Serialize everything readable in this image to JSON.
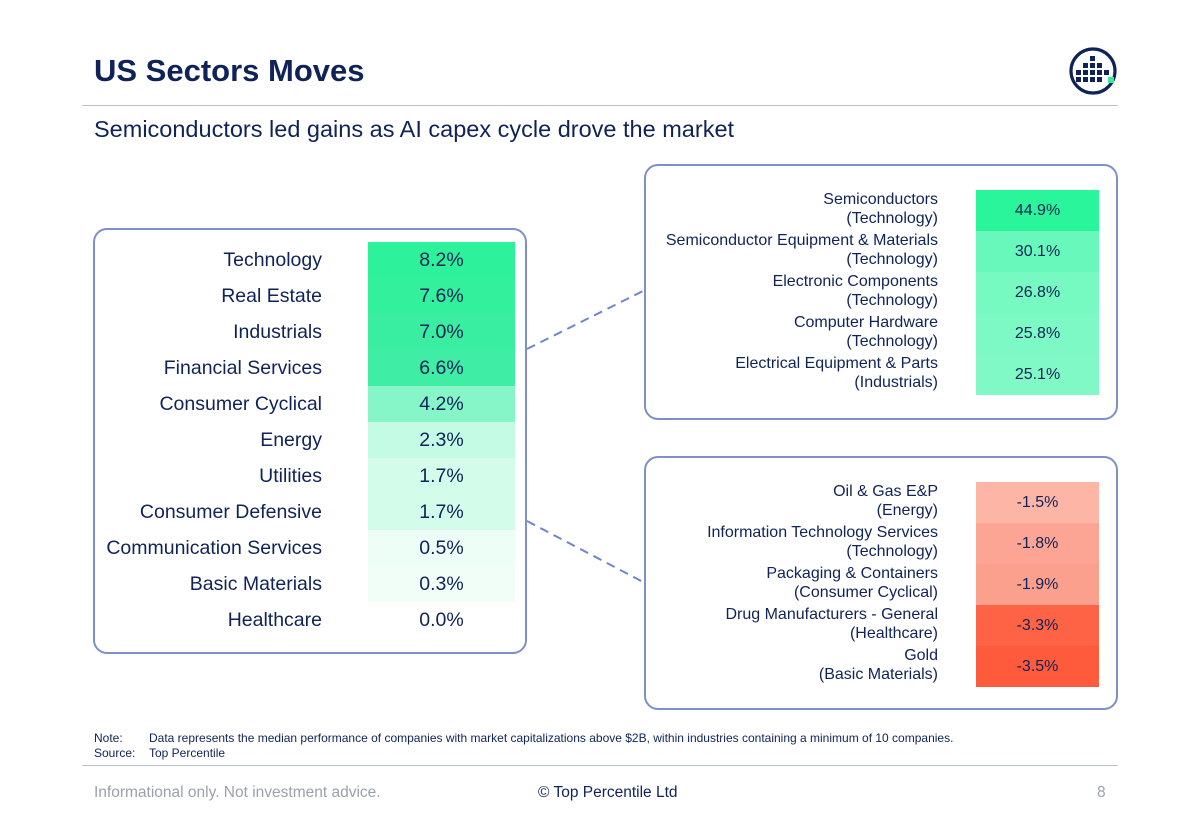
{
  "header": {
    "title": "US Sectors Moves",
    "subtitle": "Semiconductors led gains as AI capex cycle drove the market"
  },
  "chart_data": [
    {
      "type": "table",
      "title": "",
      "categories": [
        "Technology",
        "Real Estate",
        "Industrials",
        "Financial Services",
        "Consumer Cyclical",
        "Energy",
        "Utilities",
        "Consumer Defensive",
        "Communication Services",
        "Basic Materials",
        "Healthcare"
      ],
      "values": [
        8.2,
        7.6,
        7.0,
        6.6,
        4.2,
        2.3,
        1.7,
        1.7,
        0.5,
        0.3,
        0.0
      ],
      "value_labels": [
        "8.2%",
        "7.6%",
        "7.0%",
        "6.6%",
        "4.2%",
        "2.3%",
        "1.7%",
        "1.7%",
        "0.5%",
        "0.3%",
        "0.0%"
      ],
      "colors": [
        "#2ef29b",
        "#33f09d",
        "#3aeea1",
        "#40eda4",
        "#86f6c9",
        "#c4fbe4",
        "#d4fceb",
        "#d4fceb",
        "#ecfef5",
        "#f0fef7",
        "#ffffff"
      ]
    },
    {
      "type": "table",
      "title": "",
      "rows": [
        {
          "industry": "Semiconductors",
          "sector": "(Technology)",
          "value": 44.9,
          "label": "44.9%",
          "color": "#2af59b"
        },
        {
          "industry": "Semiconductor Equipment & Materials",
          "sector": "(Technology)",
          "value": 30.1,
          "label": "30.1%",
          "color": "#69f8bb"
        },
        {
          "industry": "Electronic Components",
          "sector": "(Technology)",
          "value": 26.8,
          "label": "26.8%",
          "color": "#77f9c2"
        },
        {
          "industry": "Computer Hardware",
          "sector": "(Technology)",
          "value": 25.8,
          "label": "25.8%",
          "color": "#7cf9c4"
        },
        {
          "industry": "Electrical Equipment & Parts",
          "sector": "(Industrials)",
          "value": 25.1,
          "label": "25.1%",
          "color": "#80f9c6"
        }
      ]
    },
    {
      "type": "table",
      "title": "",
      "rows": [
        {
          "industry": "Oil & Gas E&P",
          "sector": "(Energy)",
          "value": -1.5,
          "label": "-1.5%",
          "color": "#fdb5a6"
        },
        {
          "industry": "Information Technology Services",
          "sector": "(Technology)",
          "value": -1.8,
          "label": "-1.8%",
          "color": "#fca594"
        },
        {
          "industry": "Packaging & Containers",
          "sector": "(Consumer Cyclical)",
          "value": -1.9,
          "label": "-1.9%",
          "color": "#fca08e"
        },
        {
          "industry": "Drug Manufacturers - General",
          "sector": "(Healthcare)",
          "value": -3.3,
          "label": "-3.3%",
          "color": "#fd6344"
        },
        {
          "industry": "Gold",
          "sector": "(Basic Materials)",
          "value": -3.5,
          "label": "-3.5%",
          "color": "#fe5a3c"
        }
      ]
    }
  ],
  "note": {
    "note_key": "Note:",
    "note_text": "Data represents the median performance of companies with market capitalizations above $2B, within industries containing a minimum of 10 companies.",
    "source_key": "Source:",
    "source_text": "Top Percentile"
  },
  "footer": {
    "disclaimer": "Informational only. Not investment advice.",
    "copyright": "© Top Percentile Ltd",
    "page_number": "8"
  },
  "colors": {
    "navy": "#0f2358",
    "box_border": "#7f8fc7",
    "logo_accent": "#2ef29b"
  },
  "icons": {
    "logo": "top-percentile-logo-icon"
  }
}
